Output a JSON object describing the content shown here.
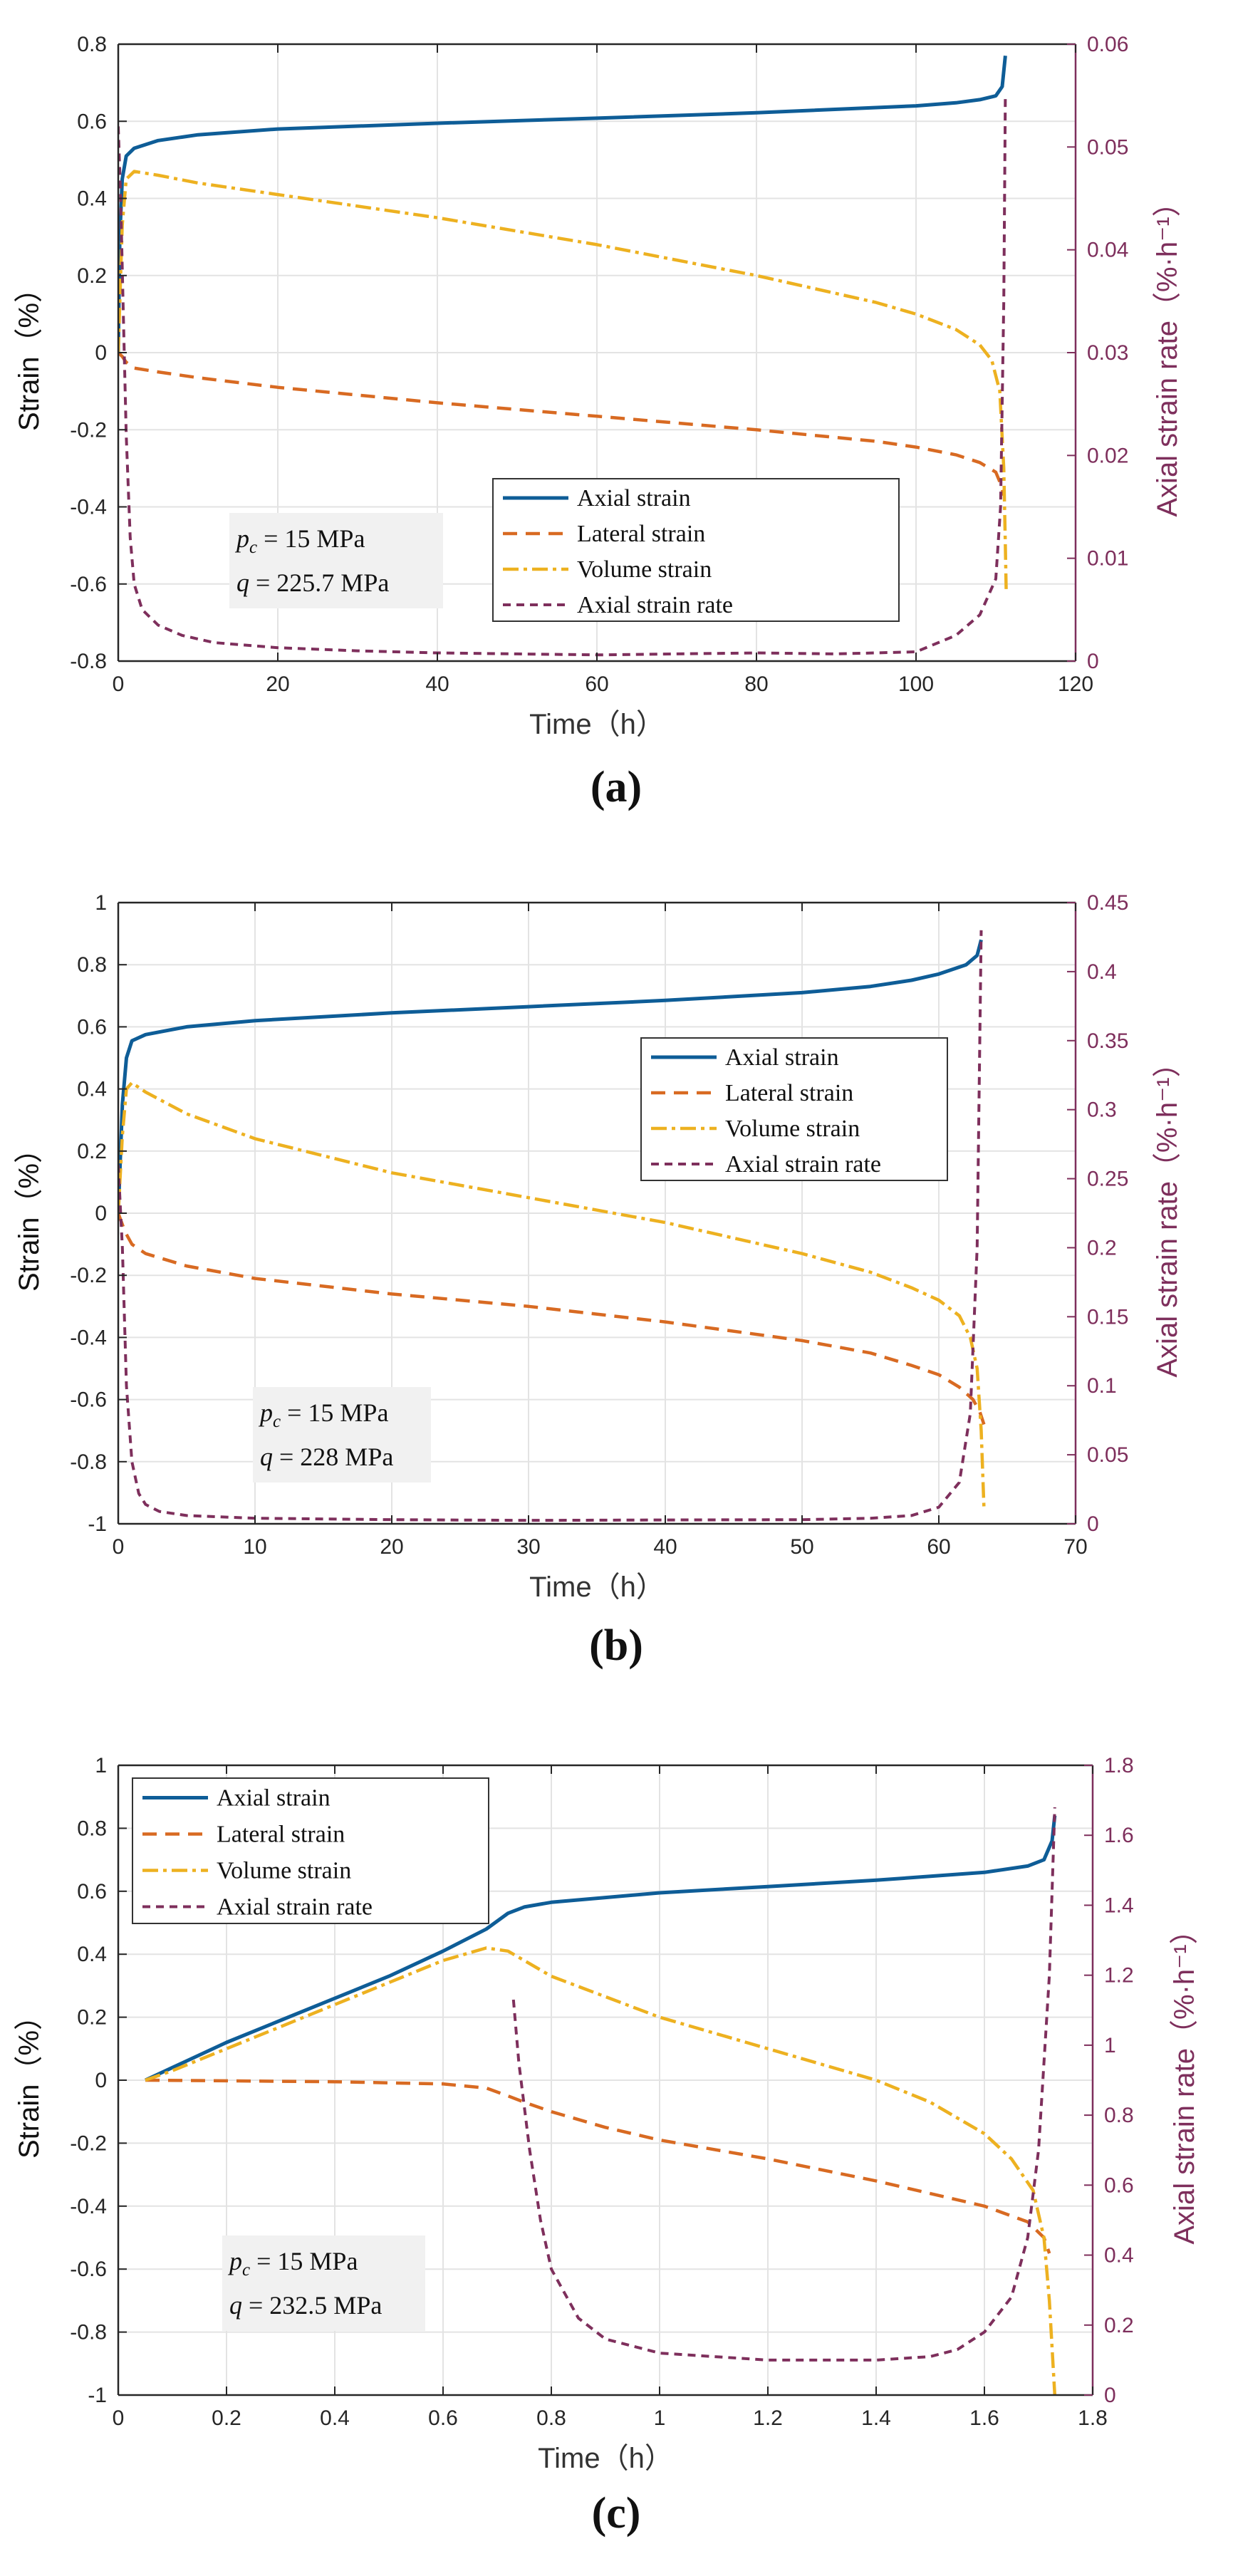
{
  "colors": {
    "axial": "#0E5D97",
    "lateral": "#D86A22",
    "volume": "#EDB120",
    "rate": "#7E2F5C",
    "grid": "#e3e3e3",
    "axis": "#262626"
  },
  "legend_labels": [
    "Axial strain",
    "Lateral strain",
    "Volume strain",
    "Axial strain rate"
  ],
  "chart_data": [
    {
      "panel": "(a)",
      "type": "line",
      "xlabel": "Time（h）",
      "ylabel": "Strain（%）",
      "y2label": "Axial strain rate（%·h⁻¹）",
      "xlim": [
        0,
        120
      ],
      "ylim": [
        -0.8,
        0.8
      ],
      "y2lim": [
        0,
        0.06
      ],
      "xticks": [
        "0",
        "20",
        "40",
        "60",
        "80",
        "100",
        "120"
      ],
      "yticks": [
        "-0.8",
        "-0.6",
        "-0.4",
        "-0.2",
        "0",
        "0.2",
        "0.4",
        "0.6",
        "0.8"
      ],
      "y2ticks": [
        "0",
        "0.01",
        "0.02",
        "0.03",
        "0.04",
        "0.05",
        "0.06"
      ],
      "grid": true,
      "legend_position": "lower-center",
      "annotation": [
        "p_c = 15 MPa",
        "q = 225.7 MPa"
      ],
      "series": [
        {
          "name": "Axial strain",
          "axis": "left",
          "x": [
            0,
            0.2,
            0.5,
            1,
            2,
            5,
            10,
            20,
            40,
            60,
            80,
            100,
            105,
            108,
            110,
            110.8,
            111.2
          ],
          "y": [
            0,
            0.3,
            0.45,
            0.51,
            0.53,
            0.55,
            0.565,
            0.58,
            0.595,
            0.608,
            0.622,
            0.64,
            0.648,
            0.656,
            0.666,
            0.69,
            0.77
          ]
        },
        {
          "name": "Lateral strain",
          "axis": "left",
          "x": [
            0,
            0.5,
            1,
            2,
            5,
            10,
            20,
            40,
            60,
            80,
            95,
            100,
            105,
            108,
            110,
            110.6,
            111
          ],
          "y": [
            0,
            -0.01,
            -0.025,
            -0.04,
            -0.05,
            -0.065,
            -0.09,
            -0.13,
            -0.165,
            -0.2,
            -0.23,
            -0.245,
            -0.265,
            -0.285,
            -0.31,
            -0.34,
            -0.37
          ]
        },
        {
          "name": "Volume strain",
          "axis": "left",
          "x": [
            0,
            0.5,
            1,
            2,
            5,
            10,
            20,
            40,
            60,
            80,
            95,
            100,
            105,
            108,
            109.5,
            110.5,
            111,
            111.2,
            111.3
          ],
          "y": [
            0,
            0.33,
            0.45,
            0.47,
            0.46,
            0.44,
            0.41,
            0.35,
            0.28,
            0.2,
            0.13,
            0.1,
            0.06,
            0.02,
            -0.02,
            -0.1,
            -0.3,
            -0.5,
            -0.62
          ]
        },
        {
          "name": "Axial strain rate",
          "axis": "right",
          "x": [
            0,
            0.3,
            0.6,
            1,
            1.5,
            2,
            3,
            5,
            8,
            12,
            20,
            30,
            40,
            50,
            60,
            70,
            80,
            90,
            100,
            105,
            108,
            110,
            110.6,
            111,
            111.2
          ],
          "y": [
            0.052,
            0.045,
            0.035,
            0.022,
            0.012,
            0.0075,
            0.005,
            0.0035,
            0.0025,
            0.0018,
            0.0013,
            0.001,
            0.0008,
            0.0007,
            0.0006,
            0.0007,
            0.0008,
            0.0007,
            0.0009,
            0.0025,
            0.0045,
            0.008,
            0.015,
            0.035,
            0.055
          ]
        }
      ]
    },
    {
      "panel": "(b)",
      "type": "line",
      "xlabel": "Time（h）",
      "ylabel": "Strain（%）",
      "y2label": "Axial strain rate（%·h⁻¹）",
      "xlim": [
        0,
        70
      ],
      "ylim": [
        -1,
        1
      ],
      "y2lim": [
        0,
        0.45
      ],
      "xticks": [
        "0",
        "10",
        "20",
        "30",
        "40",
        "50",
        "60",
        "70"
      ],
      "yticks": [
        "-1",
        "-0.8",
        "-0.6",
        "-0.4",
        "-0.2",
        "0",
        "0.2",
        "0.4",
        "0.6",
        "0.8",
        "1"
      ],
      "y2ticks": [
        "0",
        "0.05",
        "0.1",
        "0.15",
        "0.2",
        "0.25",
        "0.3",
        "0.35",
        "0.4",
        "0.45"
      ],
      "grid": true,
      "legend_position": "upper-right",
      "annotation": [
        "p_c = 15 MPa",
        "q = 228 MPa"
      ],
      "series": [
        {
          "name": "Axial strain",
          "axis": "left",
          "x": [
            0,
            0.3,
            0.6,
            1,
            2,
            5,
            10,
            20,
            30,
            40,
            50,
            55,
            58,
            60,
            62,
            62.8,
            63.1
          ],
          "y": [
            0,
            0.35,
            0.5,
            0.555,
            0.575,
            0.6,
            0.62,
            0.645,
            0.665,
            0.685,
            0.71,
            0.73,
            0.75,
            0.77,
            0.8,
            0.83,
            0.88
          ]
        },
        {
          "name": "Lateral strain",
          "axis": "left",
          "x": [
            0,
            0.5,
            1,
            2,
            5,
            10,
            20,
            30,
            40,
            50,
            55,
            58,
            60,
            61.5,
            62.5,
            63,
            63.3
          ],
          "y": [
            0,
            -0.06,
            -0.1,
            -0.13,
            -0.17,
            -0.21,
            -0.26,
            -0.3,
            -0.35,
            -0.41,
            -0.45,
            -0.49,
            -0.52,
            -0.56,
            -0.6,
            -0.64,
            -0.68
          ]
        },
        {
          "name": "Volume strain",
          "axis": "left",
          "x": [
            0,
            0.3,
            0.6,
            1,
            2,
            5,
            10,
            20,
            30,
            40,
            50,
            55,
            58,
            60,
            61.5,
            62.3,
            62.8,
            63.1,
            63.3
          ],
          "y": [
            0,
            0.25,
            0.4,
            0.42,
            0.39,
            0.32,
            0.24,
            0.13,
            0.05,
            -0.03,
            -0.13,
            -0.19,
            -0.24,
            -0.28,
            -0.33,
            -0.4,
            -0.5,
            -0.7,
            -0.95
          ]
        },
        {
          "name": "Axial strain rate",
          "axis": "right",
          "x": [
            0,
            0.3,
            0.6,
            1,
            1.5,
            2,
            3,
            5,
            10,
            20,
            30,
            40,
            50,
            55,
            58,
            60,
            61.5,
            62.3,
            62.8,
            63.1
          ],
          "y": [
            0.26,
            0.2,
            0.1,
            0.045,
            0.022,
            0.014,
            0.009,
            0.006,
            0.004,
            0.003,
            0.0025,
            0.0028,
            0.003,
            0.004,
            0.006,
            0.012,
            0.03,
            0.08,
            0.2,
            0.43
          ]
        }
      ]
    },
    {
      "panel": "(c)",
      "type": "line",
      "xlabel": "Time（h）",
      "ylabel": "Strain（%）",
      "y2label": "Axial strain rate（%·h⁻¹）",
      "xlim": [
        0,
        1.8
      ],
      "ylim": [
        -1,
        1
      ],
      "y2lim": [
        0,
        1.8
      ],
      "xticks": [
        "0",
        "0.2",
        "0.4",
        "0.6",
        "0.8",
        "1",
        "1.2",
        "1.4",
        "1.6",
        "1.8"
      ],
      "yticks": [
        "-1",
        "-0.8",
        "-0.6",
        "-0.4",
        "-0.2",
        "0",
        "0.2",
        "0.4",
        "0.6",
        "0.8",
        "1"
      ],
      "y2ticks": [
        "0",
        "0.2",
        "0.4",
        "0.6",
        "0.8",
        "1",
        "1.2",
        "1.4",
        "1.6",
        "1.8"
      ],
      "grid": true,
      "legend_position": "upper-left",
      "annotation": [
        "p_c = 15 MPa",
        "q = 232.5 MPa"
      ],
      "series": [
        {
          "name": "Axial strain",
          "axis": "left",
          "x": [
            0.05,
            0.1,
            0.2,
            0.3,
            0.4,
            0.5,
            0.6,
            0.68,
            0.72,
            0.75,
            0.8,
            0.9,
            1.0,
            1.2,
            1.4,
            1.6,
            1.68,
            1.71,
            1.725,
            1.73
          ],
          "y": [
            0,
            0.04,
            0.12,
            0.19,
            0.26,
            0.33,
            0.41,
            0.48,
            0.53,
            0.55,
            0.565,
            0.58,
            0.595,
            0.615,
            0.635,
            0.66,
            0.68,
            0.7,
            0.76,
            0.84
          ]
        },
        {
          "name": "Lateral strain",
          "axis": "left",
          "x": [
            0.05,
            0.2,
            0.4,
            0.6,
            0.68,
            0.72,
            0.75,
            0.8,
            0.9,
            1.0,
            1.2,
            1.4,
            1.6,
            1.68,
            1.71,
            1.72
          ],
          "y": [
            0,
            -0.002,
            -0.005,
            -0.012,
            -0.025,
            -0.05,
            -0.07,
            -0.1,
            -0.15,
            -0.19,
            -0.25,
            -0.32,
            -0.4,
            -0.45,
            -0.5,
            -0.55
          ]
        },
        {
          "name": "Volume strain",
          "axis": "left",
          "x": [
            0.05,
            0.1,
            0.2,
            0.3,
            0.4,
            0.5,
            0.6,
            0.68,
            0.72,
            0.75,
            0.8,
            1.0,
            1.2,
            1.4,
            1.5,
            1.6,
            1.65,
            1.69,
            1.71,
            1.72,
            1.73
          ],
          "y": [
            0,
            0.03,
            0.1,
            0.17,
            0.24,
            0.31,
            0.38,
            0.42,
            0.41,
            0.38,
            0.33,
            0.2,
            0.1,
            0.0,
            -0.07,
            -0.17,
            -0.25,
            -0.35,
            -0.5,
            -0.7,
            -1.0
          ]
        },
        {
          "name": "Axial strain rate",
          "axis": "right",
          "x": [
            0.73,
            0.74,
            0.76,
            0.78,
            0.8,
            0.85,
            0.9,
            1.0,
            1.1,
            1.2,
            1.3,
            1.4,
            1.5,
            1.55,
            1.6,
            1.65,
            1.68,
            1.7,
            1.72,
            1.73
          ],
          "y": [
            1.13,
            0.95,
            0.7,
            0.5,
            0.36,
            0.22,
            0.16,
            0.12,
            0.11,
            0.1,
            0.1,
            0.1,
            0.11,
            0.13,
            0.18,
            0.28,
            0.45,
            0.7,
            1.2,
            1.68
          ]
        }
      ]
    }
  ]
}
